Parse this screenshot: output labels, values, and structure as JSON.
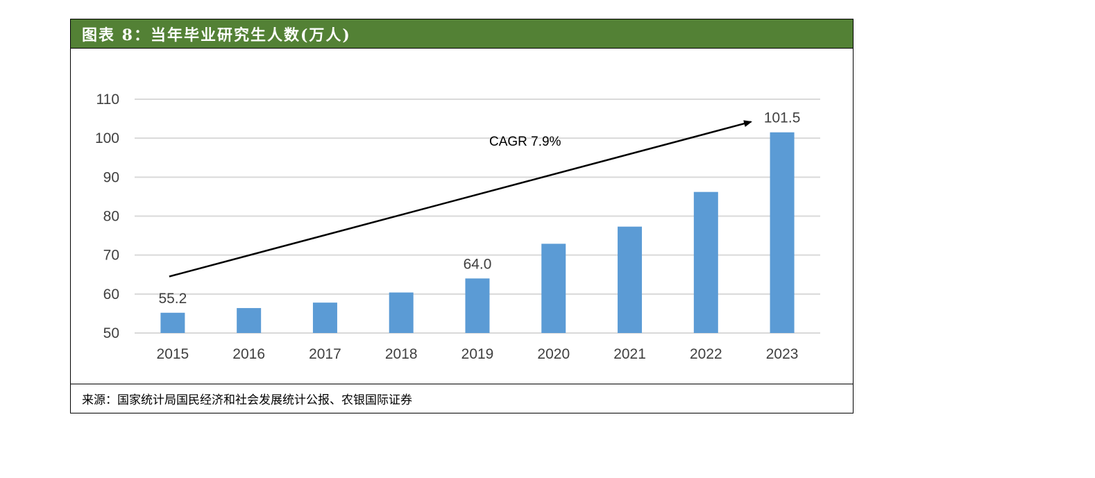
{
  "figure": {
    "title": "图表 8：当年毕业研究生人数(万人)",
    "source": "来源：国家统计局国民经济和社会发展统计公报、农银国际证券"
  },
  "colors": {
    "header_bg": "#538135",
    "bar": "#5B9BD5",
    "grid": "#D9D9D9",
    "axis_text": "#404040",
    "arrow": "#000000"
  },
  "chart_data": {
    "type": "bar",
    "title": "当年毕业研究生人数(万人)",
    "xlabel": "",
    "ylabel": "",
    "categories": [
      "2015",
      "2016",
      "2017",
      "2018",
      "2019",
      "2020",
      "2021",
      "2022",
      "2023"
    ],
    "values": [
      55.2,
      56.4,
      57.8,
      60.4,
      64.0,
      72.9,
      77.3,
      86.2,
      101.5
    ],
    "ylim": [
      50,
      110
    ],
    "yticks": [
      110,
      100,
      90,
      80,
      70,
      60,
      50
    ],
    "grid": true,
    "legend": "none",
    "data_labels": [
      {
        "category": "2015",
        "text": "55.2"
      },
      {
        "category": "2019",
        "text": "64.0"
      },
      {
        "category": "2023",
        "text": "101.5"
      }
    ],
    "annotation": {
      "text": "CAGR 7.9%",
      "arrow_from": {
        "category": "2015",
        "value": 64.5
      },
      "arrow_to": {
        "category": "2023",
        "value": 104.2
      }
    }
  }
}
